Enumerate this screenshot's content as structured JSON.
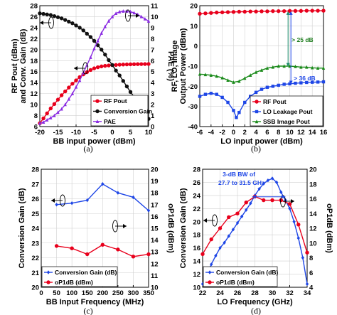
{
  "chart_data": [
    {
      "type": "line",
      "panel_label": "(a)",
      "xlabel": "BB input power (dBm)",
      "ylabel": "RF Pout (dBm) and Conv. Gain (dB)",
      "y2label": "PAE (%)",
      "xlim": [
        -20,
        10
      ],
      "ylim": [
        6,
        28
      ],
      "y2lim": [
        0,
        11
      ],
      "xticks": [
        "-20",
        "-15",
        "-10",
        "-5",
        "0",
        "5",
        "10"
      ],
      "yticks": [
        "6",
        "8",
        "10",
        "12",
        "14",
        "16",
        "18",
        "20",
        "22",
        "24",
        "26",
        "28"
      ],
      "y2ticks": [
        "0",
        "1",
        "2",
        "3",
        "4",
        "5",
        "6",
        "7",
        "8",
        "9",
        "10",
        "11"
      ],
      "legend": {
        "position": "bottom-right",
        "entries": [
          "RF Pout",
          "Conversion Gain",
          "PAE"
        ]
      },
      "series": [
        {
          "name": "RF Pout",
          "color": "#e8001c",
          "marker": "circle",
          "axis": "left",
          "x": [
            -20,
            -19,
            -18,
            -17,
            -16,
            -15,
            -14,
            -13,
            -12,
            -11,
            -10,
            -9,
            -8,
            -7,
            -6,
            -5,
            -4,
            -3,
            -2,
            -1,
            0,
            1,
            2,
            3,
            4,
            5,
            6,
            7,
            8,
            9,
            10
          ],
          "values": [
            6.6,
            7.5,
            8.4,
            9.3,
            10.1,
            10.9,
            11.7,
            12.4,
            13.1,
            13.8,
            14.4,
            15.0,
            15.5,
            15.9,
            16.3,
            16.6,
            16.8,
            16.95,
            17.05,
            17.12,
            17.18,
            17.22,
            17.26,
            17.29,
            17.31,
            17.33,
            17.35,
            17.36,
            17.37,
            17.38,
            17.39
          ]
        },
        {
          "name": "Conversion Gain",
          "color": "#111111",
          "marker": "circle",
          "axis": "left",
          "x": [
            -20,
            -19,
            -18,
            -17,
            -16,
            -15,
            -14,
            -13,
            -12,
            -11,
            -10,
            -9,
            -8,
            -7,
            -6,
            -5,
            -4,
            -3,
            -2,
            -1,
            0,
            1,
            2,
            3,
            4,
            5,
            6,
            7,
            8,
            9,
            10
          ],
          "values": [
            26.6,
            26.5,
            26.4,
            26.3,
            26.1,
            25.9,
            25.7,
            25.4,
            25.1,
            24.8,
            24.4,
            24.0,
            23.5,
            22.9,
            22.3,
            21.6,
            20.8,
            20.0,
            19.1,
            18.1,
            17.2,
            16.2,
            15.3,
            14.3,
            13.3,
            12.3,
            11.4,
            10.4,
            9.4,
            8.4,
            7.4
          ]
        },
        {
          "name": "PAE",
          "color": "#8a2be2",
          "marker": "triangle",
          "axis": "right",
          "x": [
            -20,
            -19,
            -18,
            -17,
            -16,
            -15,
            -14,
            -13,
            -12,
            -11,
            -10,
            -9,
            -8,
            -7,
            -6,
            -5,
            -4,
            -3,
            -2,
            -1,
            0,
            1,
            2,
            3,
            4,
            5,
            6,
            7,
            8,
            9,
            10
          ],
          "values": [
            0.3,
            0.4,
            0.6,
            0.8,
            1.0,
            1.3,
            1.6,
            2.0,
            2.5,
            3.0,
            3.6,
            4.2,
            4.9,
            5.6,
            6.3,
            7.1,
            7.8,
            8.5,
            9.1,
            9.6,
            10.0,
            10.3,
            10.45,
            10.5,
            10.5,
            10.45,
            10.35,
            10.2,
            10.0,
            9.8,
            9.6
          ]
        }
      ]
    },
    {
      "type": "line",
      "panel_label": "(b)",
      "xlabel": "LO input power (dBm)",
      "ylabel": "RF, LO, Image Output Power (dBm)",
      "xlim": [
        -6,
        16
      ],
      "ylim": [
        -40,
        20
      ],
      "xticks": [
        "-6",
        "-4",
        "-2",
        "0",
        "2",
        "4",
        "6",
        "8",
        "10",
        "12",
        "14",
        "16"
      ],
      "yticks": [
        "-40",
        "-30",
        "-20",
        "-10",
        "0",
        "10",
        "20"
      ],
      "annotations": [
        "> 25 dB",
        "> 36 dB"
      ],
      "legend": {
        "position": "bottom-right",
        "entries": [
          "RF Pout",
          "LO Leakage Pout",
          "SSB Image Pout"
        ]
      },
      "series": [
        {
          "name": "RF Pout",
          "color": "#e8001c",
          "marker": "circle",
          "x": [
            -6,
            -5,
            -4,
            -3,
            -2,
            -1,
            0,
            1,
            2,
            3,
            4,
            5,
            6,
            7,
            8,
            9,
            10,
            11,
            12,
            13,
            14,
            15,
            16
          ],
          "values": [
            16.0,
            16.2,
            16.4,
            16.6,
            16.7,
            16.8,
            16.9,
            17.0,
            17.0,
            17.1,
            17.1,
            17.2,
            17.2,
            17.3,
            17.3,
            17.3,
            17.4,
            17.4,
            17.4,
            17.5,
            17.5,
            17.5,
            17.5
          ]
        },
        {
          "name": "LO Leakage Pout",
          "color": "#1e46e6",
          "marker": "square",
          "x": [
            -6,
            -5,
            -4,
            -3,
            -2,
            -1,
            0,
            0.5,
            1,
            2,
            3,
            4,
            5,
            6,
            7,
            8,
            9,
            10,
            11,
            12,
            13,
            14,
            15,
            16
          ],
          "values": [
            -25.0,
            -24.0,
            -23.5,
            -24.0,
            -25.5,
            -28.0,
            -32.0,
            -35.5,
            -33.0,
            -28.0,
            -25.0,
            -23.0,
            -21.5,
            -20.5,
            -20.0,
            -19.5,
            -19.0,
            -18.8,
            -18.5,
            -18.3,
            -18.1,
            -18.0,
            -17.9,
            -17.8
          ]
        },
        {
          "name": "SSB Image Pout",
          "color": "#1a8a1a",
          "marker": "triangle",
          "x": [
            -6,
            -5,
            -4,
            -3,
            -2,
            -1,
            0,
            1,
            2,
            3,
            4,
            5,
            6,
            7,
            8,
            9,
            10,
            11,
            12,
            13,
            14,
            15,
            16
          ],
          "values": [
            -14.0,
            -14.2,
            -14.5,
            -15.0,
            -15.8,
            -17.0,
            -18.0,
            -17.5,
            -16.0,
            -14.5,
            -13.0,
            -12.0,
            -11.0,
            -10.5,
            -10.0,
            -10.0,
            -10.0,
            -10.2,
            -10.5,
            -10.5,
            -10.8,
            -11.0,
            -11.0
          ]
        }
      ]
    },
    {
      "type": "line",
      "panel_label": "(c)",
      "xlabel": "BB Input Frequency (MHz)",
      "ylabel": "Conversion Gain (dB)",
      "y2label": "oP1dB (dBm)",
      "xlim": [
        0,
        350
      ],
      "ylim": [
        20,
        28
      ],
      "y2lim": [
        10,
        20
      ],
      "xticks": [
        "0",
        "50",
        "100",
        "150",
        "200",
        "250",
        "300",
        "350"
      ],
      "yticks": [
        "20",
        "21",
        "22",
        "23",
        "24",
        "25",
        "26",
        "27",
        "28"
      ],
      "y2ticks": [
        "10",
        "11",
        "12",
        "13",
        "14",
        "15",
        "16",
        "17",
        "18",
        "19",
        "20"
      ],
      "legend": {
        "position": "bottom-right",
        "entries": [
          "Conversion Gain (dB)",
          "oP1dB (dBm)"
        ]
      },
      "series": [
        {
          "name": "Conversion Gain (dB)",
          "color": "#1e46e6",
          "marker": "diamond",
          "axis": "left",
          "x": [
            50,
            100,
            150,
            200,
            250,
            300,
            350
          ],
          "values": [
            25.6,
            25.7,
            25.9,
            27.0,
            26.4,
            26.1,
            25.2
          ]
        },
        {
          "name": "oP1dB (dBm)",
          "color": "#e8001c",
          "marker": "circle",
          "axis": "right",
          "x": [
            50,
            100,
            150,
            200,
            250,
            300,
            350
          ],
          "values": [
            13.5,
            13.3,
            12.8,
            13.6,
            13.2,
            12.6,
            12.8
          ]
        }
      ]
    },
    {
      "type": "line",
      "panel_label": "(d)",
      "xlabel": "LO Frequency (GHz)",
      "ylabel": "Conversion Gain (dB)",
      "y2label": "oP1dB (dBm)",
      "xlim": [
        22,
        34
      ],
      "ylim": [
        10,
        28
      ],
      "y2lim": [
        4,
        20
      ],
      "xticks": [
        "22",
        "24",
        "26",
        "28",
        "30",
        "32",
        "34"
      ],
      "yticks": [
        "10",
        "12",
        "14",
        "16",
        "18",
        "20",
        "22",
        "24",
        "26",
        "28"
      ],
      "y2ticks": [
        "4",
        "6",
        "8",
        "10",
        "12",
        "14",
        "16",
        "18",
        "20"
      ],
      "annotations": [
        "3-dB BW of",
        "27.7 to 31.5 GHz"
      ],
      "legend": {
        "position": "bottom-left",
        "entries": [
          "Conversion Gain (dB)",
          "oP1dB (dBm)"
        ]
      },
      "series": [
        {
          "name": "Conversion Gain (dB)",
          "color": "#1e46e6",
          "marker": "diamond",
          "axis": "left",
          "x": [
            22,
            22.5,
            23,
            23.5,
            24,
            24.5,
            25,
            25.5,
            26,
            26.5,
            27,
            27.5,
            28,
            28.5,
            29,
            29.5,
            30,
            30.5,
            31,
            31.5,
            32,
            32.5,
            33,
            33.5,
            34
          ],
          "values": [
            10.5,
            12.0,
            13.5,
            14.8,
            16.0,
            16.8,
            17.8,
            18.8,
            19.8,
            20.8,
            21.8,
            22.8,
            24.0,
            25.0,
            25.8,
            26.3,
            26.6,
            26.0,
            24.5,
            23.3,
            22.0,
            20.0,
            17.5,
            14.5,
            10.5
          ]
        },
        {
          "name": "oP1dB (dBm)",
          "color": "#e8001c",
          "marker": "circle",
          "axis": "right",
          "x": [
            22,
            23,
            24,
            25,
            26,
            27,
            28,
            29,
            30,
            31,
            32,
            33,
            34
          ],
          "values": [
            8.5,
            10.5,
            12.0,
            13.5,
            14.0,
            15.5,
            16.3,
            15.8,
            15.8,
            15.8,
            15.3,
            12.5,
            8.7
          ]
        }
      ]
    }
  ]
}
